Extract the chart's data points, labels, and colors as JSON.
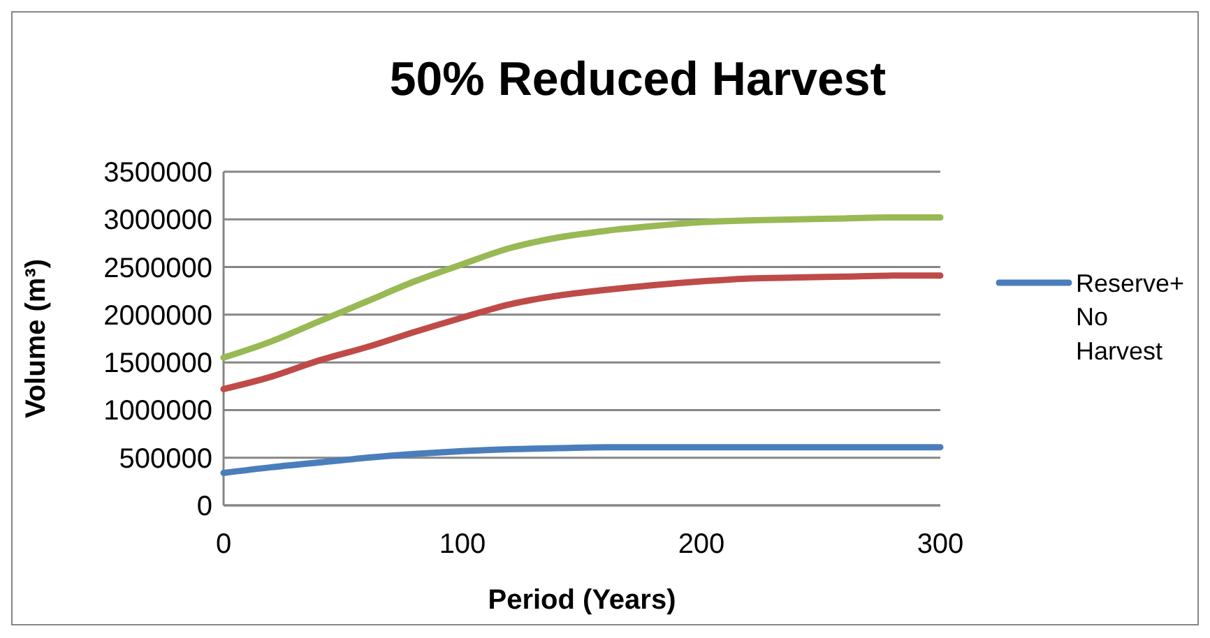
{
  "chart_data": {
    "type": "line",
    "title": "50% Reduced Harvest",
    "xlabel": "Period (Years)",
    "ylabel": "Volume (m³)",
    "x": [
      0,
      20,
      40,
      60,
      80,
      100,
      120,
      140,
      160,
      180,
      200,
      220,
      240,
      260,
      280,
      300
    ],
    "xlim": [
      0,
      300
    ],
    "xticks": [
      0,
      100,
      200,
      300
    ],
    "ylim": [
      0,
      3500000
    ],
    "yticks": [
      0,
      500000,
      1000000,
      1500000,
      2000000,
      2500000,
      3000000,
      3500000
    ],
    "grid": "y",
    "legend": "right",
    "marker": "none",
    "line_style": "solid",
    "series": [
      {
        "name": "Reserve+ No Harvest",
        "color": "#4a7ebb",
        "values": [
          340000,
          400000,
          450000,
          500000,
          540000,
          570000,
          590000,
          600000,
          610000,
          610000,
          610000,
          610000,
          610000,
          610000,
          610000,
          610000
        ]
      },
      {
        "color": "#be4b48",
        "values": [
          1220000,
          1350000,
          1520000,
          1660000,
          1820000,
          1970000,
          2110000,
          2200000,
          2260000,
          2310000,
          2350000,
          2380000,
          2390000,
          2400000,
          2410000,
          2410000
        ]
      },
      {
        "color": "#98b954",
        "values": [
          1550000,
          1720000,
          1930000,
          2140000,
          2350000,
          2530000,
          2700000,
          2810000,
          2880000,
          2930000,
          2970000,
          2990000,
          3000000,
          3010000,
          3020000,
          3020000
        ]
      }
    ]
  }
}
